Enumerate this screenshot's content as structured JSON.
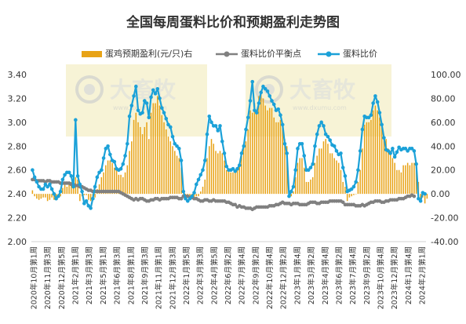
{
  "chart_data": {
    "type": "bar+line",
    "title": "全国每周蛋料比价和预期盈利走势图",
    "legend_position": "top",
    "watermark": "大畜牧",
    "watermark_url": "www.dxumu.com",
    "colors": {
      "bar": "#E8A317",
      "breakeven": "#808080",
      "ratio": "#1BA1D8"
    },
    "left_axis": {
      "min": 2.0,
      "max": 3.4,
      "step": 0.2,
      "ticks": [
        "2.00",
        "2.20",
        "2.40",
        "2.60",
        "2.80",
        "3.00",
        "3.20",
        "3.40"
      ]
    },
    "right_axis": {
      "min": -40,
      "max": 100,
      "step": 20,
      "ticks": [
        "-40.00",
        "-20.00",
        "0.00",
        "20.00",
        "40.00",
        "60.00",
        "80.00",
        "100.00"
      ]
    },
    "x_tick_labels": [
      "2020年10月第1周",
      "2020年11月第3周",
      "2020年12月第5周",
      "2021年2月第1周",
      "2021年3月第3周",
      "2021年5月第1周",
      "2021年6月第3周",
      "2021年8月第1周",
      "2021年9月第3周",
      "2021年11月第1周",
      "2021年12月第3周",
      "2022年1月第5周",
      "2022年3月第3周",
      "2022年4月第5周",
      "2022年6月第2周",
      "2022年7月第4周",
      "2022年9月第2周",
      "2022年10月第4周",
      "2022年12月第2周",
      "2023年1月第4周",
      "2023年3月第2周",
      "2023年4月第4周",
      "2023年6月第2周",
      "2023年7月第4周",
      "2023年9月第2周",
      "2023年10月第4周",
      "2023年12月第2周",
      "2024年1月第4周",
      "2024年2月第1周"
    ],
    "series": [
      {
        "name": "蛋鸡预期盈利(元/只)右",
        "axis": "right",
        "type": "bar",
        "values": [
          3,
          -2,
          -4,
          -5,
          -4,
          -3,
          -3,
          -6,
          -5,
          -3,
          -5,
          -5,
          -2,
          -2,
          5,
          8,
          6,
          10,
          10,
          8,
          14,
          12,
          -6,
          -2,
          -1,
          -1,
          -5,
          -6,
          -3,
          -3,
          4,
          8,
          14,
          18,
          24,
          28,
          28,
          26,
          22,
          20,
          16,
          16,
          14,
          18,
          24,
          36,
          44,
          62,
          68,
          60,
          56,
          50,
          56,
          60,
          46,
          68,
          76,
          76,
          82,
          74,
          66,
          60,
          54,
          48,
          44,
          40,
          36,
          32,
          30,
          22,
          0,
          -2,
          -3,
          -5,
          -4,
          -3,
          -2,
          -2,
          2,
          6,
          12,
          30,
          40,
          46,
          42,
          36,
          34,
          36,
          34,
          28,
          20,
          20,
          18,
          18,
          18,
          20,
          26,
          32,
          40,
          44,
          54,
          70,
          68,
          76,
          70,
          82,
          84,
          80,
          74,
          70,
          72,
          72,
          64,
          60,
          60,
          62,
          56,
          46,
          40,
          -2,
          -2,
          2,
          14,
          26,
          30,
          30,
          22,
          10,
          10,
          12,
          14,
          26,
          32,
          38,
          38,
          44,
          46,
          42,
          34,
          34,
          30,
          28,
          26,
          20,
          10,
          6,
          -6,
          -3,
          -2,
          -1,
          0,
          10,
          20,
          38,
          58,
          60,
          60,
          62,
          70,
          74,
          70,
          64,
          56,
          46,
          46,
          38,
          36,
          30,
          26,
          20,
          20,
          18,
          24,
          24,
          26,
          24,
          26,
          26,
          26,
          10,
          -6,
          -3,
          -8,
          -4
        ]
      },
      {
        "name": "蛋料比价平衡点",
        "axis": "left",
        "type": "line",
        "values": [
          2.52,
          2.52,
          2.51,
          2.51,
          2.51,
          2.51,
          2.5,
          2.51,
          2.51,
          2.5,
          2.5,
          2.5,
          2.5,
          2.49,
          2.49,
          2.49,
          2.49,
          2.49,
          2.48,
          2.48,
          2.47,
          2.47,
          2.46,
          2.46,
          2.45,
          2.44,
          2.43,
          2.43,
          2.42,
          2.42,
          2.42,
          2.42,
          2.42,
          2.42,
          2.42,
          2.42,
          2.42,
          2.42,
          2.42,
          2.42,
          2.42,
          2.41,
          2.4,
          2.39,
          2.38,
          2.37,
          2.36,
          2.35,
          2.36,
          2.35,
          2.36,
          2.36,
          2.35,
          2.34,
          2.34,
          2.35,
          2.35,
          2.36,
          2.36,
          2.35,
          2.36,
          2.36,
          2.36,
          2.36,
          2.37,
          2.37,
          2.37,
          2.37,
          2.36,
          2.36,
          2.38,
          2.38,
          2.38,
          2.37,
          2.37,
          2.36,
          2.36,
          2.35,
          2.34,
          2.34,
          2.35,
          2.35,
          2.34,
          2.34,
          2.35,
          2.34,
          2.34,
          2.34,
          2.34,
          2.34,
          2.33,
          2.33,
          2.32,
          2.31,
          2.31,
          2.29,
          2.3,
          2.29,
          2.29,
          2.28,
          2.28,
          2.28,
          2.27,
          2.28,
          2.29,
          2.29,
          2.29,
          2.29,
          2.29,
          2.29,
          2.3,
          2.3,
          2.3,
          2.31,
          2.31,
          2.32,
          2.33,
          2.32,
          2.32,
          2.32,
          2.31,
          2.32,
          2.32,
          2.32,
          2.31,
          2.31,
          2.31,
          2.31,
          2.32,
          2.33,
          2.33,
          2.33,
          2.32,
          2.32,
          2.33,
          2.33,
          2.33,
          2.33,
          2.34,
          2.34,
          2.34,
          2.34,
          2.34,
          2.34,
          2.33,
          2.31,
          2.31,
          2.31,
          2.31,
          2.31,
          2.3,
          2.3,
          2.3,
          2.31,
          2.3,
          2.31,
          2.32,
          2.33,
          2.33,
          2.34,
          2.34,
          2.34,
          2.33,
          2.33,
          2.34,
          2.34,
          2.35,
          2.35,
          2.35,
          2.35,
          2.36,
          2.36,
          2.36,
          2.37,
          2.38,
          2.38,
          2.39,
          2.38
        ]
      },
      {
        "name": "蛋料比价",
        "axis": "left",
        "type": "line",
        "values": [
          2.6,
          2.54,
          2.5,
          2.46,
          2.44,
          2.44,
          2.48,
          2.46,
          2.48,
          2.44,
          2.4,
          2.36,
          2.38,
          2.42,
          2.52,
          2.56,
          2.58,
          2.58,
          2.55,
          2.46,
          3.02,
          2.55,
          2.48,
          2.42,
          2.32,
          2.34,
          2.3,
          2.28,
          2.36,
          2.46,
          2.54,
          2.58,
          2.6,
          2.7,
          2.78,
          2.8,
          2.73,
          2.68,
          2.67,
          2.61,
          2.6,
          2.61,
          2.65,
          2.72,
          2.82,
          3.05,
          3.14,
          3.22,
          3.3,
          3.1,
          3.07,
          3.08,
          3.18,
          3.16,
          3.04,
          3.21,
          3.27,
          3.24,
          3.28,
          3.2,
          3.12,
          3.08,
          3.03,
          2.98,
          2.96,
          2.88,
          2.82,
          2.8,
          2.78,
          2.68,
          2.42,
          2.36,
          2.34,
          2.36,
          2.38,
          2.41,
          2.48,
          2.52,
          2.56,
          2.6,
          2.68,
          2.9,
          3.05,
          3.0,
          2.97,
          2.97,
          2.93,
          2.97,
          2.84,
          2.74,
          2.63,
          2.6,
          2.6,
          2.61,
          2.59,
          2.61,
          2.64,
          2.74,
          2.8,
          2.94,
          3.04,
          3.18,
          3.34,
          3.1,
          3.08,
          3.16,
          3.25,
          3.3,
          3.28,
          3.26,
          3.22,
          3.18,
          3.15,
          3.1,
          3.11,
          3.06,
          2.98,
          2.82,
          2.74,
          2.38,
          2.42,
          2.46,
          2.6,
          2.78,
          2.82,
          2.82,
          2.72,
          2.6,
          2.6,
          2.62,
          2.65,
          2.8,
          2.9,
          2.97,
          3.0,
          2.97,
          2.9,
          2.88,
          2.85,
          2.81,
          2.8,
          2.76,
          2.73,
          2.74,
          2.62,
          2.55,
          2.42,
          2.43,
          2.44,
          2.46,
          2.5,
          2.6,
          2.76,
          2.94,
          3.05,
          3.04,
          3.04,
          3.06,
          3.16,
          3.22,
          3.17,
          3.08,
          2.98,
          2.87,
          2.77,
          2.76,
          2.74,
          2.78,
          2.71,
          2.75,
          2.79,
          2.77,
          2.78,
          2.78,
          2.76,
          2.78,
          2.78,
          2.76,
          2.65,
          2.36,
          2.34,
          2.41,
          2.4
        ]
      }
    ]
  }
}
